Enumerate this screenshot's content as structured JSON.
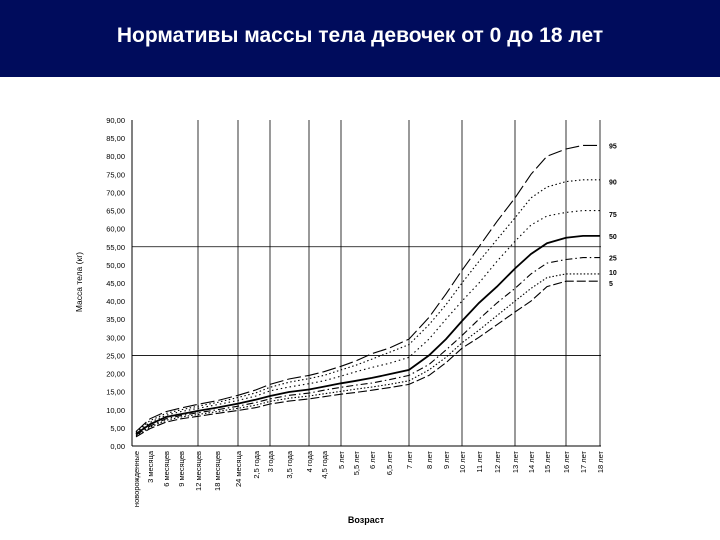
{
  "header": {
    "title": "Нормативы массы тела девочек от 0 до 18 лет"
  },
  "colors": {
    "header_bg": "#000c5c",
    "header_text": "#ffffff"
  },
  "chart_data": {
    "type": "line",
    "title": "Нормативы массы тела девочек от 0 до 18 лет",
    "xlabel": "Возраст",
    "ylabel": "Масса тела (кг)",
    "ylim": [
      0,
      90
    ],
    "yticks": [
      "0,00",
      "5,00",
      "10,00",
      "15,00",
      "20,00",
      "25,00",
      "30,00",
      "35,00",
      "40,00",
      "45,00",
      "50,00",
      "55,00",
      "60,00",
      "65,00",
      "70,00",
      "75,00",
      "80,00",
      "85,00",
      "90,00"
    ],
    "categories": [
      "новорожденные",
      "3 месяца",
      "6 месяцев",
      "9 месяцев",
      "12 месяцев",
      "18 месяцев",
      "24 месяца",
      "2,5 года",
      "3 года",
      "3,5 года",
      "4 года",
      "4,5 года",
      "5 лет",
      "5,5 лет",
      "6 лет",
      "6,5 лет",
      "7 лет",
      "8 лет",
      "9 лет",
      "10 лет",
      "11 лет",
      "12 лет",
      "13 лет",
      "14 лет",
      "15 лет",
      "16 лет",
      "17 лет",
      "18 лет"
    ],
    "series": [
      {
        "name": "95",
        "dash": "14,4",
        "values": [
          4.0,
          7.5,
          9.5,
          10.5,
          11.5,
          12.5,
          14.0,
          15.5,
          17.0,
          18.5,
          19.5,
          20.5,
          22.0,
          23.5,
          25.5,
          27.0,
          29.5,
          35.5,
          42.0,
          48.5,
          55.0,
          62.0,
          68.5,
          75.0,
          80.0,
          82.0,
          83.0,
          83.0
        ]
      },
      {
        "name": "90",
        "dash": "1.5,2.5",
        "values": [
          3.8,
          7.0,
          9.0,
          10.0,
          11.0,
          12.0,
          13.4,
          14.7,
          16.2,
          17.6,
          18.6,
          19.5,
          21.0,
          22.3,
          24.0,
          25.8,
          28.0,
          33.5,
          39.0,
          45.0,
          51.0,
          57.0,
          63.0,
          68.5,
          71.5,
          73.0,
          73.5,
          73.5
        ]
      },
      {
        "name": "75",
        "dash": "1.5,3",
        "values": [
          3.6,
          6.5,
          8.5,
          9.5,
          10.4,
          11.4,
          12.6,
          13.8,
          15.2,
          16.3,
          17.2,
          18.0,
          19.3,
          20.5,
          21.7,
          22.8,
          24.5,
          29.5,
          35.0,
          40.0,
          45.0,
          51.0,
          56.5,
          61.0,
          63.5,
          64.5,
          65.0,
          65.0
        ]
      },
      {
        "name": "50",
        "dash": "",
        "values": [
          3.3,
          6.0,
          8.0,
          8.8,
          9.7,
          10.6,
          11.7,
          12.8,
          13.8,
          14.9,
          15.6,
          16.4,
          17.3,
          18.0,
          18.8,
          19.8,
          21.0,
          25.0,
          29.5,
          34.5,
          39.5,
          44.0,
          49.0,
          53.0,
          56.0,
          57.5,
          58.0,
          58.0
        ]
      },
      {
        "name": "25",
        "dash": "7,3,1.5,3",
        "values": [
          3.0,
          5.5,
          7.5,
          8.4,
          9.2,
          10.0,
          11.0,
          12.0,
          13.0,
          14.0,
          14.6,
          15.4,
          16.2,
          16.8,
          17.4,
          18.3,
          19.5,
          22.5,
          26.5,
          30.5,
          35.0,
          39.5,
          43.5,
          47.5,
          50.5,
          51.5,
          52.0,
          52.0
        ]
      },
      {
        "name": "10",
        "dash": "1.5,2",
        "values": [
          2.8,
          5.2,
          7.1,
          8.0,
          8.7,
          9.5,
          10.4,
          11.3,
          12.3,
          13.2,
          13.8,
          14.4,
          15.1,
          15.7,
          16.3,
          17.0,
          18.0,
          21.0,
          24.5,
          28.5,
          32.0,
          36.0,
          40.0,
          43.5,
          46.5,
          47.5,
          47.5,
          47.5
        ]
      },
      {
        "name": "5",
        "dash": "9,3",
        "values": [
          2.5,
          4.8,
          6.6,
          7.5,
          8.2,
          9.0,
          9.8,
          10.6,
          11.6,
          12.4,
          13.0,
          13.6,
          14.3,
          14.8,
          15.4,
          16.1,
          17.0,
          19.5,
          23.0,
          27.0,
          30.0,
          33.5,
          37.0,
          40.0,
          44.0,
          45.5,
          45.5,
          45.5
        ]
      }
    ],
    "grid": "vertical lines at 12 мес, 24 мес, 3 года, 4 года, 5 лет, 7 лет, 10 лет, 13 лет, 16 лет, 18 лет; horizontal lines at 25,00 and 55,00",
    "legend": "percentile labels at right end of curves"
  }
}
